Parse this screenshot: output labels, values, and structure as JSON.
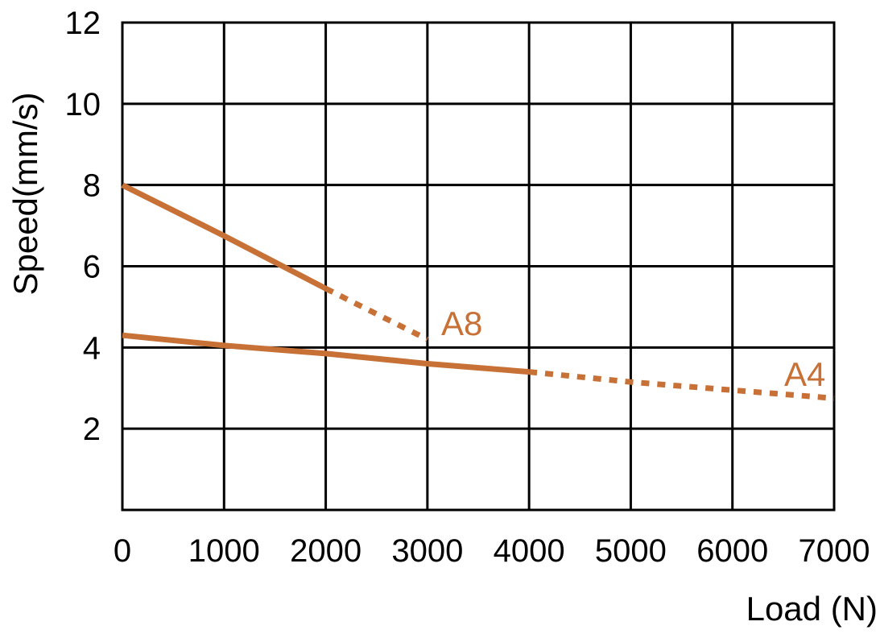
{
  "chart_data": {
    "type": "line",
    "xlabel": "Load (N)",
    "ylabel": "Speed(mm/s)",
    "xlim": [
      0,
      7000
    ],
    "ylim": [
      0,
      12
    ],
    "x_ticks": [
      "0",
      "1000",
      "2000",
      "3000",
      "4000",
      "5000",
      "6000",
      "7000"
    ],
    "y_ticks": [
      "2",
      "4",
      "6",
      "8",
      "10",
      "12"
    ],
    "grid": true,
    "line_color": "#c87137",
    "series": [
      {
        "name": "A8",
        "solid": [
          [
            0,
            8.0
          ],
          [
            1000,
            6.75
          ],
          [
            2000,
            5.45
          ]
        ],
        "dotted": [
          [
            2000,
            5.45
          ],
          [
            3000,
            4.2
          ]
        ]
      },
      {
        "name": "A4",
        "solid": [
          [
            0,
            4.3
          ],
          [
            1000,
            4.05
          ],
          [
            2000,
            3.85
          ],
          [
            3000,
            3.6
          ],
          [
            4000,
            3.4
          ]
        ],
        "dotted": [
          [
            4000,
            3.4
          ],
          [
            5000,
            3.15
          ],
          [
            6000,
            2.95
          ],
          [
            7000,
            2.75
          ]
        ]
      }
    ]
  }
}
